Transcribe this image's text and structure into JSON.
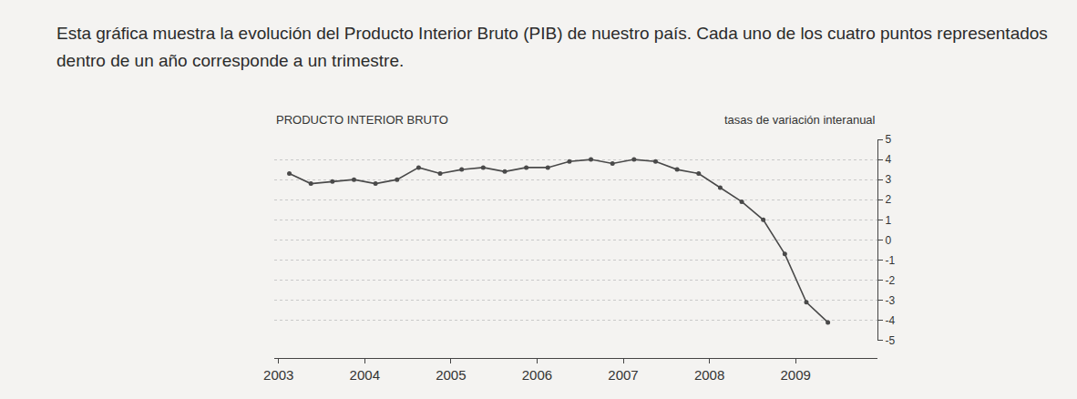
{
  "text": "Esta gráfica muestra la evolución del Producto Interior Bruto (PIB) de nuestro país. Cada uno de los cuatro puntos representados dentro de un año corresponde a un trimestre.",
  "chart_data": {
    "type": "line",
    "title": "PRODUCTO INTERIOR BRUTO",
    "ylabel": "tasas de variación interanual",
    "x": [
      2003.125,
      2003.375,
      2003.625,
      2003.875,
      2004.125,
      2004.375,
      2004.625,
      2004.875,
      2005.125,
      2005.375,
      2005.625,
      2005.875,
      2006.125,
      2006.375,
      2006.625,
      2006.875,
      2007.125,
      2007.375,
      2007.625,
      2007.875,
      2008.125,
      2008.375,
      2008.625,
      2008.875,
      2009.125,
      2009.375
    ],
    "values": [
      3.3,
      2.8,
      2.9,
      3.0,
      2.8,
      3.0,
      3.6,
      3.3,
      3.5,
      3.6,
      3.4,
      3.6,
      3.6,
      3.9,
      4.0,
      3.8,
      4.0,
      3.9,
      3.5,
      3.3,
      2.6,
      1.9,
      1.0,
      -0.7,
      -3.1,
      -4.1
    ],
    "color": "#4a4a4a",
    "marker": "circle",
    "line_style": "solid",
    "xlim": [
      2002.95,
      2009.95
    ],
    "xticks": [
      2003,
      2004,
      2005,
      2006,
      2007,
      2008,
      2009
    ],
    "ylim": [
      -5,
      5
    ],
    "yticks": [
      -5,
      -4,
      -3,
      -2,
      -1,
      0,
      1,
      2,
      3,
      4,
      5
    ],
    "grid": true
  }
}
